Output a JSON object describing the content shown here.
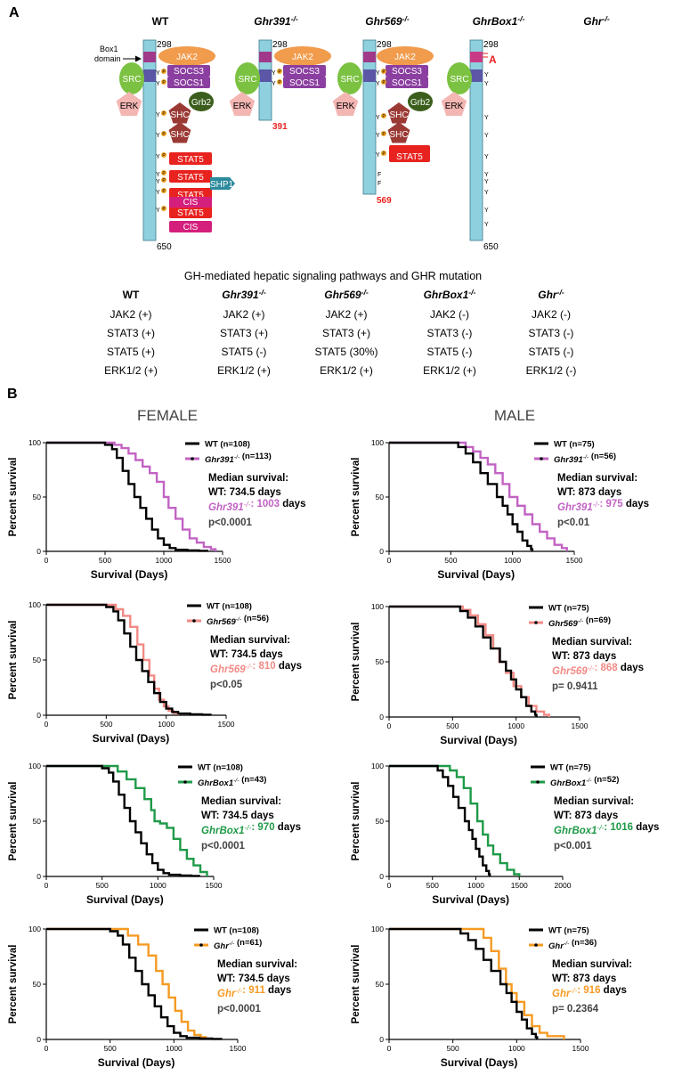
{
  "panel_a": {
    "label": "A",
    "box1_label_line1": "Box1",
    "box1_label_line2": "domain",
    "receptors": [
      {
        "title": "WT",
        "italic": false,
        "sup": "",
        "top_num": "298",
        "bottom_num": "650",
        "bottom_color": "#000000"
      },
      {
        "title": "Ghr391",
        "italic": true,
        "sup": "-/-",
        "top_num": "298",
        "bottom_num": "391",
        "bottom_color": "#e8231f"
      },
      {
        "title": "Ghr569",
        "italic": true,
        "sup": "-/-",
        "top_num": "298",
        "bottom_num": "569",
        "bottom_color": "#e8231f"
      },
      {
        "title": "GhrBox1",
        "italic": true,
        "sup": "-/-",
        "top_num": "298",
        "bottom_num": "650",
        "bottom_color": "#000000"
      },
      {
        "title": "Ghr",
        "italic": true,
        "sup": "-/-",
        "top_num": "",
        "bottom_num": "",
        "bottom_color": "#000000"
      }
    ],
    "molecules": {
      "jak2": "JAK2",
      "socs3": "SOCS3",
      "socs1": "SOCS1",
      "src": "SRC",
      "erk": "ERK",
      "grb2": "Grb2",
      "shc": "SHC",
      "stat5": "STAT5",
      "shp1": "SHP1",
      "cis": "CIS",
      "y": "Y",
      "p": "P",
      "f": "F",
      "box1_mutation": "A"
    },
    "signaling_title": "GH-mediated hepatic signaling pathways and GHR mutation",
    "signaling_table": [
      {
        "header": "WT",
        "header_italic": false,
        "header_sup": "",
        "rows": [
          "JAK2 (+)",
          "STAT3 (+)",
          "STAT5 (+)",
          "ERK1/2 (+)"
        ]
      },
      {
        "header": "Ghr391",
        "header_italic": true,
        "header_sup": "-/-",
        "rows": [
          "JAK2 (+)",
          "STAT3 (+)",
          "STAT5 (-)",
          "ERK1/2 (+)"
        ]
      },
      {
        "header": "Ghr569",
        "header_italic": true,
        "header_sup": "-/-",
        "rows": [
          "JAK2 (+)",
          "STAT3 (+)",
          "STAT5 (30%)",
          "ERK1/2 (+)"
        ]
      },
      {
        "header": "GhrBox1",
        "header_italic": true,
        "header_sup": "-/-",
        "rows": [
          "JAK2 (-)",
          "STAT3 (-)",
          "STAT5 (-)",
          "ERK1/2 (+)"
        ]
      },
      {
        "header": "Ghr",
        "header_italic": true,
        "header_sup": "-/-",
        "rows": [
          "JAK2 (-)",
          "STAT3 (-)",
          "STAT5 (-)",
          "ERK1/2 (-)"
        ]
      }
    ]
  },
  "panel_b": {
    "label": "B",
    "female_title": "FEMALE",
    "male_title": "MALE",
    "ylabel": "Percent survival",
    "xlabel": "Survival (Days)",
    "median_label": "Median survival:",
    "days_word": "days"
  },
  "chart_data": [
    {
      "type": "line",
      "sex": "female",
      "title": "",
      "xlabel": "Survival (Days)",
      "ylabel": "Percent survival",
      "xlim": [
        0,
        1500
      ],
      "ylim": [
        0,
        100
      ],
      "xticks": [
        0,
        500,
        1000,
        1500
      ],
      "yticks": [
        0,
        50,
        100
      ],
      "wt_legend": "WT (n=108)",
      "mut_name": "Ghr391",
      "mut_sup": "-/-",
      "mut_n": "(n=113)",
      "mut_color": "#c263c4",
      "wt_median_line": "WT: 734.5 days",
      "mut_median": "1003",
      "pvalue": "p<0.0001",
      "series": [
        {
          "name": "WT",
          "x": [
            0,
            430,
            500,
            560,
            600,
            650,
            700,
            750,
            800,
            850,
            900,
            950,
            1000,
            1050,
            1100,
            1200,
            1300,
            1370
          ],
          "values": [
            100,
            100,
            98,
            94,
            86,
            74,
            62,
            50,
            40,
            30,
            20,
            12,
            6,
            3,
            1.5,
            0.8,
            0.5,
            0
          ]
        },
        {
          "name": "Ghr391-/-",
          "x": [
            0,
            500,
            580,
            640,
            700,
            760,
            820,
            880,
            940,
            1000,
            1040,
            1100,
            1160,
            1220,
            1280,
            1340,
            1400,
            1440
          ],
          "values": [
            100,
            100,
            98,
            95,
            90,
            84,
            78,
            72,
            64,
            50,
            40,
            30,
            20,
            12,
            8,
            4,
            2,
            0
          ]
        }
      ]
    },
    {
      "type": "line",
      "sex": "male",
      "title": "",
      "xlabel": "Survival (Days)",
      "ylabel": "Percent survival",
      "xlim": [
        0,
        1500
      ],
      "ylim": [
        0,
        100
      ],
      "xticks": [
        0,
        500,
        1000,
        1500
      ],
      "yticks": [
        0,
        50,
        100
      ],
      "wt_legend": "WT (n=75)",
      "mut_name": "Ghr391",
      "mut_sup": "-/-",
      "mut_n": "(n=56)",
      "mut_color": "#c263c4",
      "wt_median_line": "WT: 873 days",
      "mut_median": "975",
      "pvalue": "p<0.01",
      "series": [
        {
          "name": "WT",
          "x": [
            0,
            500,
            560,
            620,
            680,
            740,
            800,
            873,
            920,
            960,
            1000,
            1040,
            1080,
            1120,
            1150,
            1160
          ],
          "values": [
            100,
            100,
            96,
            90,
            82,
            72,
            62,
            50,
            42,
            34,
            25,
            18,
            10,
            5,
            2,
            0
          ]
        },
        {
          "name": "Ghr391-/-",
          "x": [
            0,
            560,
            620,
            680,
            740,
            800,
            860,
            920,
            975,
            1040,
            1100,
            1160,
            1220,
            1280,
            1340,
            1400,
            1440
          ],
          "values": [
            100,
            100,
            96,
            92,
            86,
            80,
            72,
            62,
            50,
            42,
            34,
            25,
            18,
            12,
            6,
            3,
            0
          ]
        }
      ]
    },
    {
      "type": "line",
      "sex": "female",
      "title": "",
      "xlabel": "Survival (Days)",
      "ylabel": "Percent survival",
      "xlim": [
        0,
        1500
      ],
      "ylim": [
        0,
        100
      ],
      "xticks": [
        0,
        500,
        1000,
        1500
      ],
      "yticks": [
        0,
        50,
        100
      ],
      "wt_legend": "WT (n=108)",
      "mut_name": "Ghr569",
      "mut_sup": "-/-",
      "mut_n": "(n=56)",
      "mut_color": "#f28a85",
      "wt_median_line": "WT: 734.5 days",
      "mut_median": "810",
      "pvalue": "p<0.05",
      "series": [
        {
          "name": "WT",
          "x": [
            0,
            430,
            500,
            560,
            600,
            650,
            700,
            750,
            800,
            850,
            900,
            950,
            1000,
            1050,
            1100,
            1200,
            1300,
            1370
          ],
          "values": [
            100,
            100,
            98,
            94,
            86,
            74,
            62,
            50,
            40,
            30,
            20,
            12,
            6,
            3,
            1.5,
            0.8,
            0.5,
            0
          ]
        },
        {
          "name": "Ghr569-/-",
          "x": [
            0,
            500,
            580,
            640,
            700,
            760,
            810,
            860,
            900,
            940,
            980,
            1020,
            1060,
            1100
          ],
          "values": [
            100,
            100,
            96,
            90,
            80,
            64,
            50,
            36,
            24,
            14,
            8,
            4,
            2,
            0
          ]
        }
      ]
    },
    {
      "type": "line",
      "sex": "male",
      "title": "",
      "xlabel": "Survival (Days)",
      "ylabel": "Percent survival",
      "xlim": [
        0,
        1500
      ],
      "ylim": [
        0,
        100
      ],
      "xticks": [
        0,
        500,
        1000,
        1500
      ],
      "yticks": [
        0,
        50,
        100
      ],
      "wt_legend": "WT (n=75)",
      "mut_name": "Ghr569",
      "mut_sup": "-/-",
      "mut_n": "(n=69)",
      "mut_color": "#f28a85",
      "wt_median_line": "WT: 873 days",
      "mut_median": "868",
      "pvalue": "p= 0.9411",
      "series": [
        {
          "name": "WT",
          "x": [
            0,
            500,
            560,
            620,
            680,
            740,
            800,
            873,
            920,
            960,
            1000,
            1040,
            1080,
            1120,
            1150,
            1160
          ],
          "values": [
            100,
            100,
            96,
            90,
            82,
            72,
            62,
            50,
            42,
            34,
            25,
            18,
            10,
            5,
            2,
            0
          ]
        },
        {
          "name": "Ghr569-/-",
          "x": [
            0,
            520,
            580,
            640,
            700,
            760,
            820,
            868,
            920,
            980,
            1040,
            1100,
            1160,
            1220,
            1260
          ],
          "values": [
            100,
            100,
            97,
            92,
            84,
            74,
            62,
            50,
            40,
            28,
            18,
            10,
            5,
            2,
            0
          ]
        }
      ]
    },
    {
      "type": "line",
      "sex": "female",
      "title": "",
      "xlabel": "Survival (Days)",
      "ylabel": "Percent survival",
      "xlim": [
        0,
        1500
      ],
      "ylim": [
        0,
        100
      ],
      "xticks": [
        0,
        500,
        1000,
        1500
      ],
      "yticks": [
        0,
        50,
        100
      ],
      "wt_legend": "WT (n=108)",
      "mut_name": "GhrBox1",
      "mut_sup": "-/-",
      "mut_n": "(n=43)",
      "mut_color": "#1f9a48",
      "wt_median_line": "WT: 734.5 days",
      "mut_median": "970",
      "pvalue": "p<0.0001",
      "series": [
        {
          "name": "WT",
          "x": [
            0,
            430,
            500,
            560,
            600,
            650,
            700,
            750,
            800,
            850,
            900,
            950,
            1000,
            1050,
            1100,
            1200,
            1300,
            1370
          ],
          "values": [
            100,
            100,
            98,
            94,
            86,
            74,
            62,
            50,
            40,
            30,
            20,
            12,
            6,
            3,
            1.5,
            0.8,
            0.5,
            0
          ]
        },
        {
          "name": "GhrBox1-/-",
          "x": [
            0,
            560,
            640,
            720,
            800,
            880,
            940,
            970,
            1020,
            1080,
            1140,
            1200,
            1260,
            1320,
            1380,
            1440
          ],
          "values": [
            100,
            100,
            95,
            88,
            80,
            70,
            60,
            50,
            48,
            44,
            34,
            24,
            16,
            10,
            4,
            0
          ]
        }
      ]
    },
    {
      "type": "line",
      "sex": "male",
      "title": "",
      "xlabel": "Survival (Days)",
      "ylabel": "Percent survival",
      "xlim": [
        0,
        2000
      ],
      "ylim": [
        0,
        100
      ],
      "xticks": [
        0,
        500,
        1000,
        1500,
        2000
      ],
      "yticks": [
        0,
        50,
        100
      ],
      "wt_legend": "WT (n=75)",
      "mut_name": "GhrBox1",
      "mut_sup": "-/-",
      "mut_n": "(n=52)",
      "mut_color": "#1f9a48",
      "wt_median_line": "WT: 873 days",
      "mut_median": "1016",
      "pvalue": "p<0.001",
      "series": [
        {
          "name": "WT",
          "x": [
            0,
            500,
            560,
            620,
            680,
            740,
            800,
            873,
            920,
            960,
            1000,
            1040,
            1080,
            1120,
            1150,
            1160
          ],
          "values": [
            100,
            100,
            96,
            90,
            82,
            72,
            62,
            50,
            42,
            34,
            25,
            18,
            10,
            5,
            2,
            0
          ]
        },
        {
          "name": "GhrBox1-/-",
          "x": [
            0,
            600,
            700,
            780,
            860,
            940,
            1016,
            1080,
            1140,
            1200,
            1280,
            1360,
            1440,
            1500
          ],
          "values": [
            100,
            100,
            96,
            90,
            80,
            66,
            50,
            38,
            28,
            20,
            12,
            6,
            2,
            0
          ]
        }
      ]
    },
    {
      "type": "line",
      "sex": "female",
      "title": "",
      "xlabel": "Survival (Days)",
      "ylabel": "Percent survival",
      "xlim": [
        0,
        1500
      ],
      "ylim": [
        0,
        100
      ],
      "xticks": [
        0,
        500,
        1000,
        1500
      ],
      "yticks": [
        0,
        50,
        100
      ],
      "wt_legend": "WT (n=108)",
      "mut_name": "Ghr",
      "mut_sup": "-/-",
      "mut_n": "(n=61)",
      "mut_color": "#f59a23",
      "wt_median_line": "WT: 734.5 days",
      "mut_median": "911",
      "pvalue": "p<0.0001",
      "series": [
        {
          "name": "WT",
          "x": [
            0,
            430,
            500,
            560,
            600,
            650,
            700,
            750,
            800,
            850,
            900,
            950,
            1000,
            1050,
            1100,
            1200,
            1300,
            1370
          ],
          "values": [
            100,
            100,
            98,
            94,
            86,
            74,
            62,
            50,
            40,
            30,
            20,
            12,
            6,
            3,
            1.5,
            0.8,
            0.5,
            0
          ]
        },
        {
          "name": "Ghr-/-",
          "x": [
            0,
            560,
            640,
            720,
            800,
            860,
            911,
            960,
            1010,
            1060,
            1110,
            1160,
            1210,
            1250
          ],
          "values": [
            100,
            100,
            94,
            86,
            76,
            62,
            50,
            38,
            26,
            16,
            8,
            4,
            2,
            0
          ]
        }
      ]
    },
    {
      "type": "line",
      "sex": "male",
      "title": "",
      "xlabel": "Survival (Days)",
      "ylabel": "Percent survival",
      "xlim": [
        0,
        1500
      ],
      "ylim": [
        0,
        100
      ],
      "xticks": [
        0,
        500,
        1000,
        1500
      ],
      "yticks": [
        0,
        50,
        100
      ],
      "wt_legend": "WT (n=75)",
      "mut_name": "Ghr",
      "mut_sup": "-/-",
      "mut_n": "(n=36)",
      "mut_color": "#f59a23",
      "wt_median_line": "WT: 873 days",
      "mut_median": "916",
      "pvalue": "p= 0.2364",
      "series": [
        {
          "name": "WT",
          "x": [
            0,
            500,
            560,
            620,
            680,
            740,
            800,
            873,
            920,
            960,
            1000,
            1040,
            1080,
            1120,
            1150,
            1160
          ],
          "values": [
            100,
            100,
            96,
            90,
            82,
            72,
            62,
            50,
            42,
            34,
            25,
            18,
            10,
            5,
            2,
            0
          ]
        },
        {
          "name": "Ghr-/-",
          "x": [
            0,
            680,
            740,
            800,
            860,
            916,
            960,
            1000,
            1060,
            1120,
            1180,
            1240,
            1300,
            1370
          ],
          "values": [
            100,
            100,
            92,
            80,
            64,
            50,
            42,
            34,
            22,
            12,
            6,
            3,
            3,
            0
          ]
        }
      ]
    }
  ]
}
